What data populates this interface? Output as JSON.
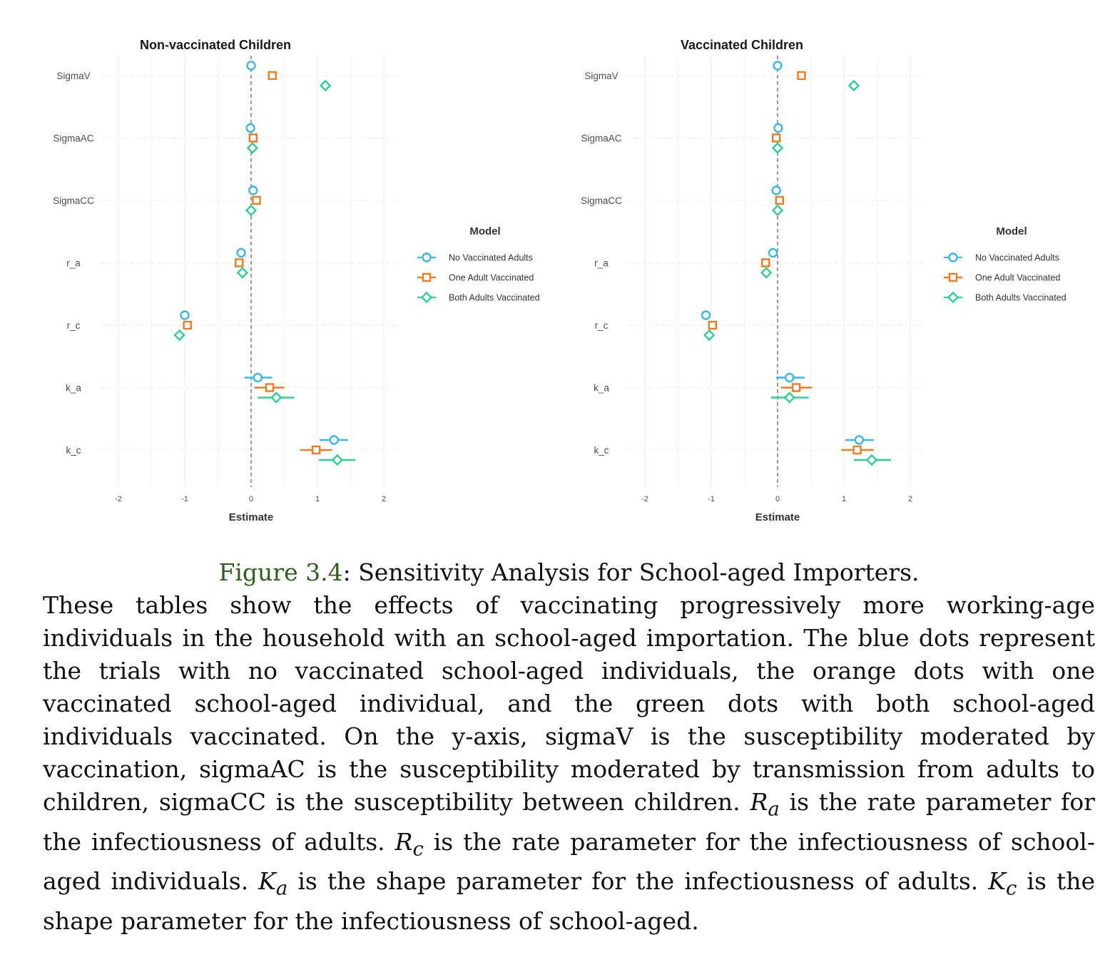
{
  "chart_data": [
    {
      "type": "forest",
      "title": "Non-vaccinated Children",
      "xlabel": "Estimate",
      "ylabel": "",
      "xlim": [
        -2,
        2
      ],
      "xticks": [
        "-2",
        "-1",
        "0",
        "1",
        "2"
      ],
      "categories": [
        "SigmaV",
        "SigmaAC",
        "SigmaCC",
        "r_a",
        "r_c",
        "k_a",
        "k_c"
      ],
      "reference_line": 0,
      "legend_title": "Model",
      "series": [
        {
          "name": "No Vaccinated Adults",
          "color": "#3db6ea",
          "marker": "circle",
          "estimate": [
            0.0,
            -0.01,
            0.03,
            -0.15,
            -1.0,
            0.1,
            1.25
          ],
          "lower": [
            null,
            null,
            null,
            null,
            null,
            -0.1,
            1.03
          ],
          "upper": [
            null,
            null,
            null,
            null,
            null,
            0.32,
            1.46
          ]
        },
        {
          "name": "One Adult Vaccinated",
          "color": "#f07a1c",
          "marker": "square",
          "estimate": [
            0.32,
            0.03,
            0.08,
            -0.18,
            -0.96,
            0.28,
            0.98
          ],
          "lower": [
            null,
            null,
            null,
            null,
            null,
            0.05,
            0.74
          ],
          "upper": [
            null,
            null,
            null,
            null,
            null,
            0.5,
            1.22
          ]
        },
        {
          "name": "Both Adults Vaccinated",
          "color": "#2ecf92",
          "marker": "diamond",
          "estimate": [
            1.12,
            0.02,
            0.0,
            -0.13,
            -1.08,
            0.38,
            1.3
          ],
          "lower": [
            null,
            null,
            null,
            null,
            null,
            0.1,
            1.02
          ],
          "upper": [
            null,
            null,
            null,
            null,
            null,
            0.65,
            1.57
          ]
        }
      ]
    },
    {
      "type": "forest",
      "title": "Vaccinated Children",
      "xlabel": "Estimate",
      "ylabel": "",
      "xlim": [
        -2,
        2
      ],
      "xticks": [
        "-2",
        "-1",
        "0",
        "1",
        "2"
      ],
      "categories": [
        "SigmaV",
        "SigmaAC",
        "SigmaCC",
        "r_a",
        "r_c",
        "k_a",
        "k_c"
      ],
      "reference_line": 0,
      "legend_title": "Model",
      "series": [
        {
          "name": "No Vaccinated Adults",
          "color": "#3db6ea",
          "marker": "circle",
          "estimate": [
            0.0,
            0.01,
            -0.02,
            -0.07,
            -1.08,
            0.18,
            1.23
          ],
          "lower": [
            null,
            null,
            null,
            null,
            null,
            -0.02,
            1.02
          ],
          "upper": [
            null,
            null,
            null,
            null,
            null,
            0.41,
            1.45
          ]
        },
        {
          "name": "One Adult Vaccinated",
          "color": "#f07a1c",
          "marker": "square",
          "estimate": [
            0.36,
            -0.02,
            0.03,
            -0.18,
            -0.98,
            0.28,
            1.2
          ],
          "lower": [
            null,
            null,
            null,
            null,
            null,
            0.05,
            0.96
          ],
          "upper": [
            null,
            null,
            null,
            null,
            null,
            0.52,
            1.45
          ]
        },
        {
          "name": "Both Adults Vaccinated",
          "color": "#2ecf92",
          "marker": "diamond",
          "estimate": [
            1.15,
            0.0,
            0.0,
            -0.17,
            -1.03,
            0.18,
            1.42
          ],
          "lower": [
            null,
            null,
            null,
            null,
            null,
            -0.1,
            1.15
          ],
          "upper": [
            null,
            null,
            null,
            null,
            null,
            0.47,
            1.71
          ]
        }
      ]
    }
  ],
  "caption": {
    "label": "Figure 3.4",
    "title": ": Sensitivity Analysis for School-aged Importers.",
    "body_1": "These tables show the effects of vaccinating progressively more working-age individuals in the household with an school-aged importation. The blue dots represent the trials with no vaccinated school-aged individuals, the orange dots with one vaccinated school-aged individual, and the green dots with both school-aged individuals vaccinated. On the y-axis, sigmaV is the susceptibility moderated by vaccination, sigmaAC is the susceptibility moderated by transmission from adults to children, sigmaCC is the susceptibility between children. ",
    "ra_symbol": "R",
    "ra_sub": "a",
    "body_2": " is the rate parameter for the infectiousness of adults. ",
    "rc_symbol": "R",
    "rc_sub": "c",
    "body_3": " is the rate parameter for the infectiousness of school-aged individuals. ",
    "ka_symbol": "K",
    "ka_sub": "a",
    "body_4": " is the shape parameter for the infectiousness of adults. ",
    "kc_symbol": "K",
    "kc_sub": "c",
    "body_5": " is the shape parameter for the infectiousness of school-aged."
  }
}
